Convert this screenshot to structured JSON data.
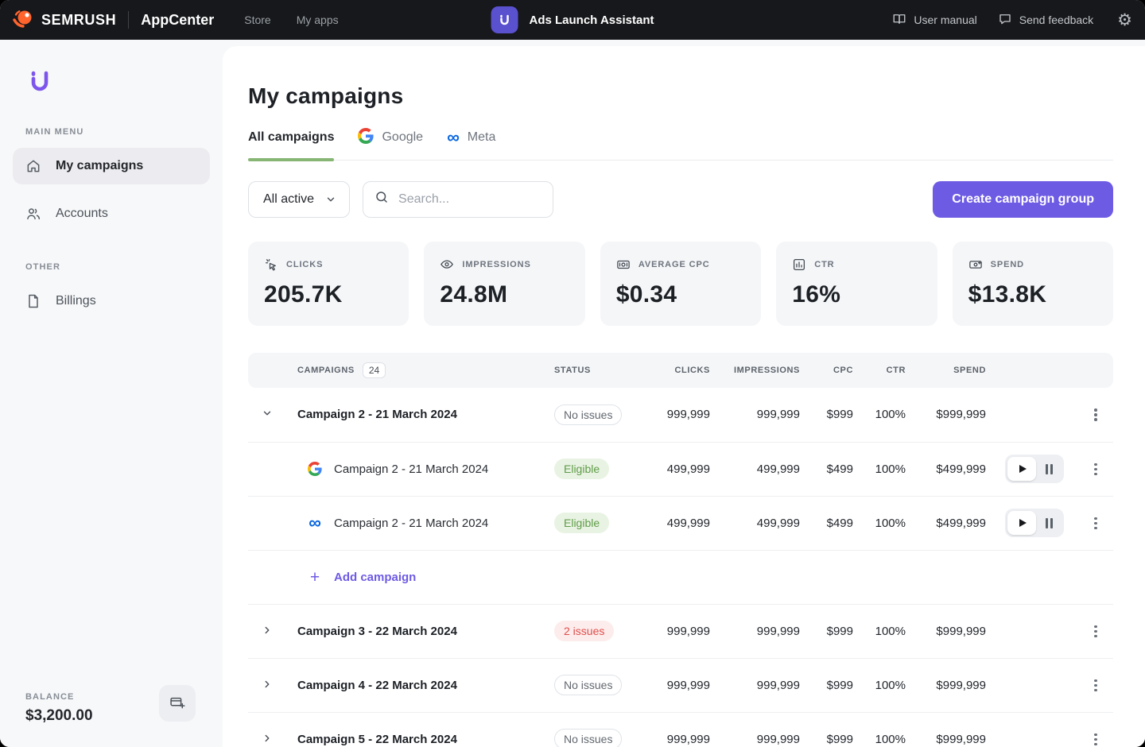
{
  "topbar": {
    "brand": "SEMRUSH",
    "brand_sub": "AppCenter",
    "nav": [
      {
        "label": "Store"
      },
      {
        "label": "My apps"
      }
    ],
    "app_title": "Ads Launch Assistant",
    "links": [
      {
        "label": "User manual",
        "icon": "book-icon"
      },
      {
        "label": "Send feedback",
        "icon": "chat-icon"
      }
    ],
    "settings_icon": "gear-icon"
  },
  "sidebar": {
    "logo_icon": "app-logo-icon",
    "sections": [
      {
        "label": "MAIN MENU",
        "items": [
          {
            "label": "My campaigns",
            "icon": "home-icon",
            "active": true
          },
          {
            "label": "Accounts",
            "icon": "users-icon",
            "active": false
          }
        ]
      },
      {
        "label": "OTHER",
        "items": [
          {
            "label": "Billings",
            "icon": "document-icon",
            "active": false
          }
        ]
      }
    ],
    "balance_label": "BALANCE",
    "balance_value": "$3,200.00",
    "balance_button_icon": "card-plus-icon"
  },
  "main": {
    "title": "My campaigns",
    "tabs": [
      {
        "label": "All campaigns",
        "active": true
      },
      {
        "label": "Google",
        "icon": "google-icon",
        "active": false
      },
      {
        "label": "Meta",
        "icon": "meta-icon",
        "active": false
      }
    ],
    "filter": {
      "value": "All active"
    },
    "search": {
      "placeholder": "Search..."
    },
    "create_button": "Create campaign group",
    "stats": [
      {
        "label": "CLICKS",
        "value": "205.7K",
        "icon": "cursor-click-icon"
      },
      {
        "label": "IMPRESSIONS",
        "value": "24.8M",
        "icon": "eye-icon"
      },
      {
        "label": "AVERAGE CPC",
        "value": "$0.34",
        "icon": "money-icon"
      },
      {
        "label": "CTR",
        "value": "16%",
        "icon": "bar-chart-icon"
      },
      {
        "label": "SPEND",
        "value": "$13.8K",
        "icon": "banknote-icon"
      }
    ],
    "table": {
      "header": {
        "campaigns": "CAMPAIGNS",
        "count": "24",
        "status": "STATUS",
        "clicks": "CLICKS",
        "impressions": "IMPRESSIONS",
        "cpc": "CPC",
        "ctr": "CTR",
        "spend": "SPEND"
      },
      "rows": [
        {
          "type": "group",
          "expanded": true,
          "name": "Campaign 2 - 21 March 2024",
          "status": "No issues",
          "status_kind": "neutral",
          "clicks": "999,999",
          "impressions": "999,999",
          "cpc": "$999",
          "ctr": "100%",
          "spend": "$999,999"
        },
        {
          "type": "child",
          "platform": "google",
          "name": "Campaign 2 - 21 March 2024",
          "status": "Eligible",
          "status_kind": "success",
          "clicks": "499,999",
          "impressions": "499,999",
          "cpc": "$499",
          "ctr": "100%",
          "spend": "$499,999",
          "controls": true
        },
        {
          "type": "child",
          "platform": "meta",
          "name": "Campaign 2 - 21 March 2024",
          "status": "Eligible",
          "status_kind": "success",
          "clicks": "499,999",
          "impressions": "499,999",
          "cpc": "$499",
          "ctr": "100%",
          "spend": "$499,999",
          "controls": true
        },
        {
          "type": "add",
          "label": "Add campaign"
        },
        {
          "type": "group",
          "expanded": false,
          "name": "Campaign 3 - 22 March 2024",
          "status": "2 issues",
          "status_kind": "error",
          "clicks": "999,999",
          "impressions": "999,999",
          "cpc": "$999",
          "ctr": "100%",
          "spend": "$999,999"
        },
        {
          "type": "group",
          "expanded": false,
          "name": "Campaign 4 - 22 March 2024",
          "status": "No issues",
          "status_kind": "neutral",
          "clicks": "999,999",
          "impressions": "999,999",
          "cpc": "$999",
          "ctr": "100%",
          "spend": "$999,999"
        },
        {
          "type": "group",
          "expanded": false,
          "name": "Campaign 5 - 22 March 2024",
          "status": "No issues",
          "status_kind": "neutral",
          "clicks": "999,999",
          "impressions": "999,999",
          "cpc": "$999",
          "ctr": "100%",
          "spend": "$999,999"
        }
      ]
    }
  },
  "colors": {
    "topbar_bg": "#17181b",
    "accent_purple": "#6e5be4",
    "brand_orange": "#ff642d",
    "tab_active_green": "#87b674",
    "status_success_text": "#5f9c49",
    "status_error_text": "#de4f4b",
    "meta_blue": "#0866e0"
  }
}
